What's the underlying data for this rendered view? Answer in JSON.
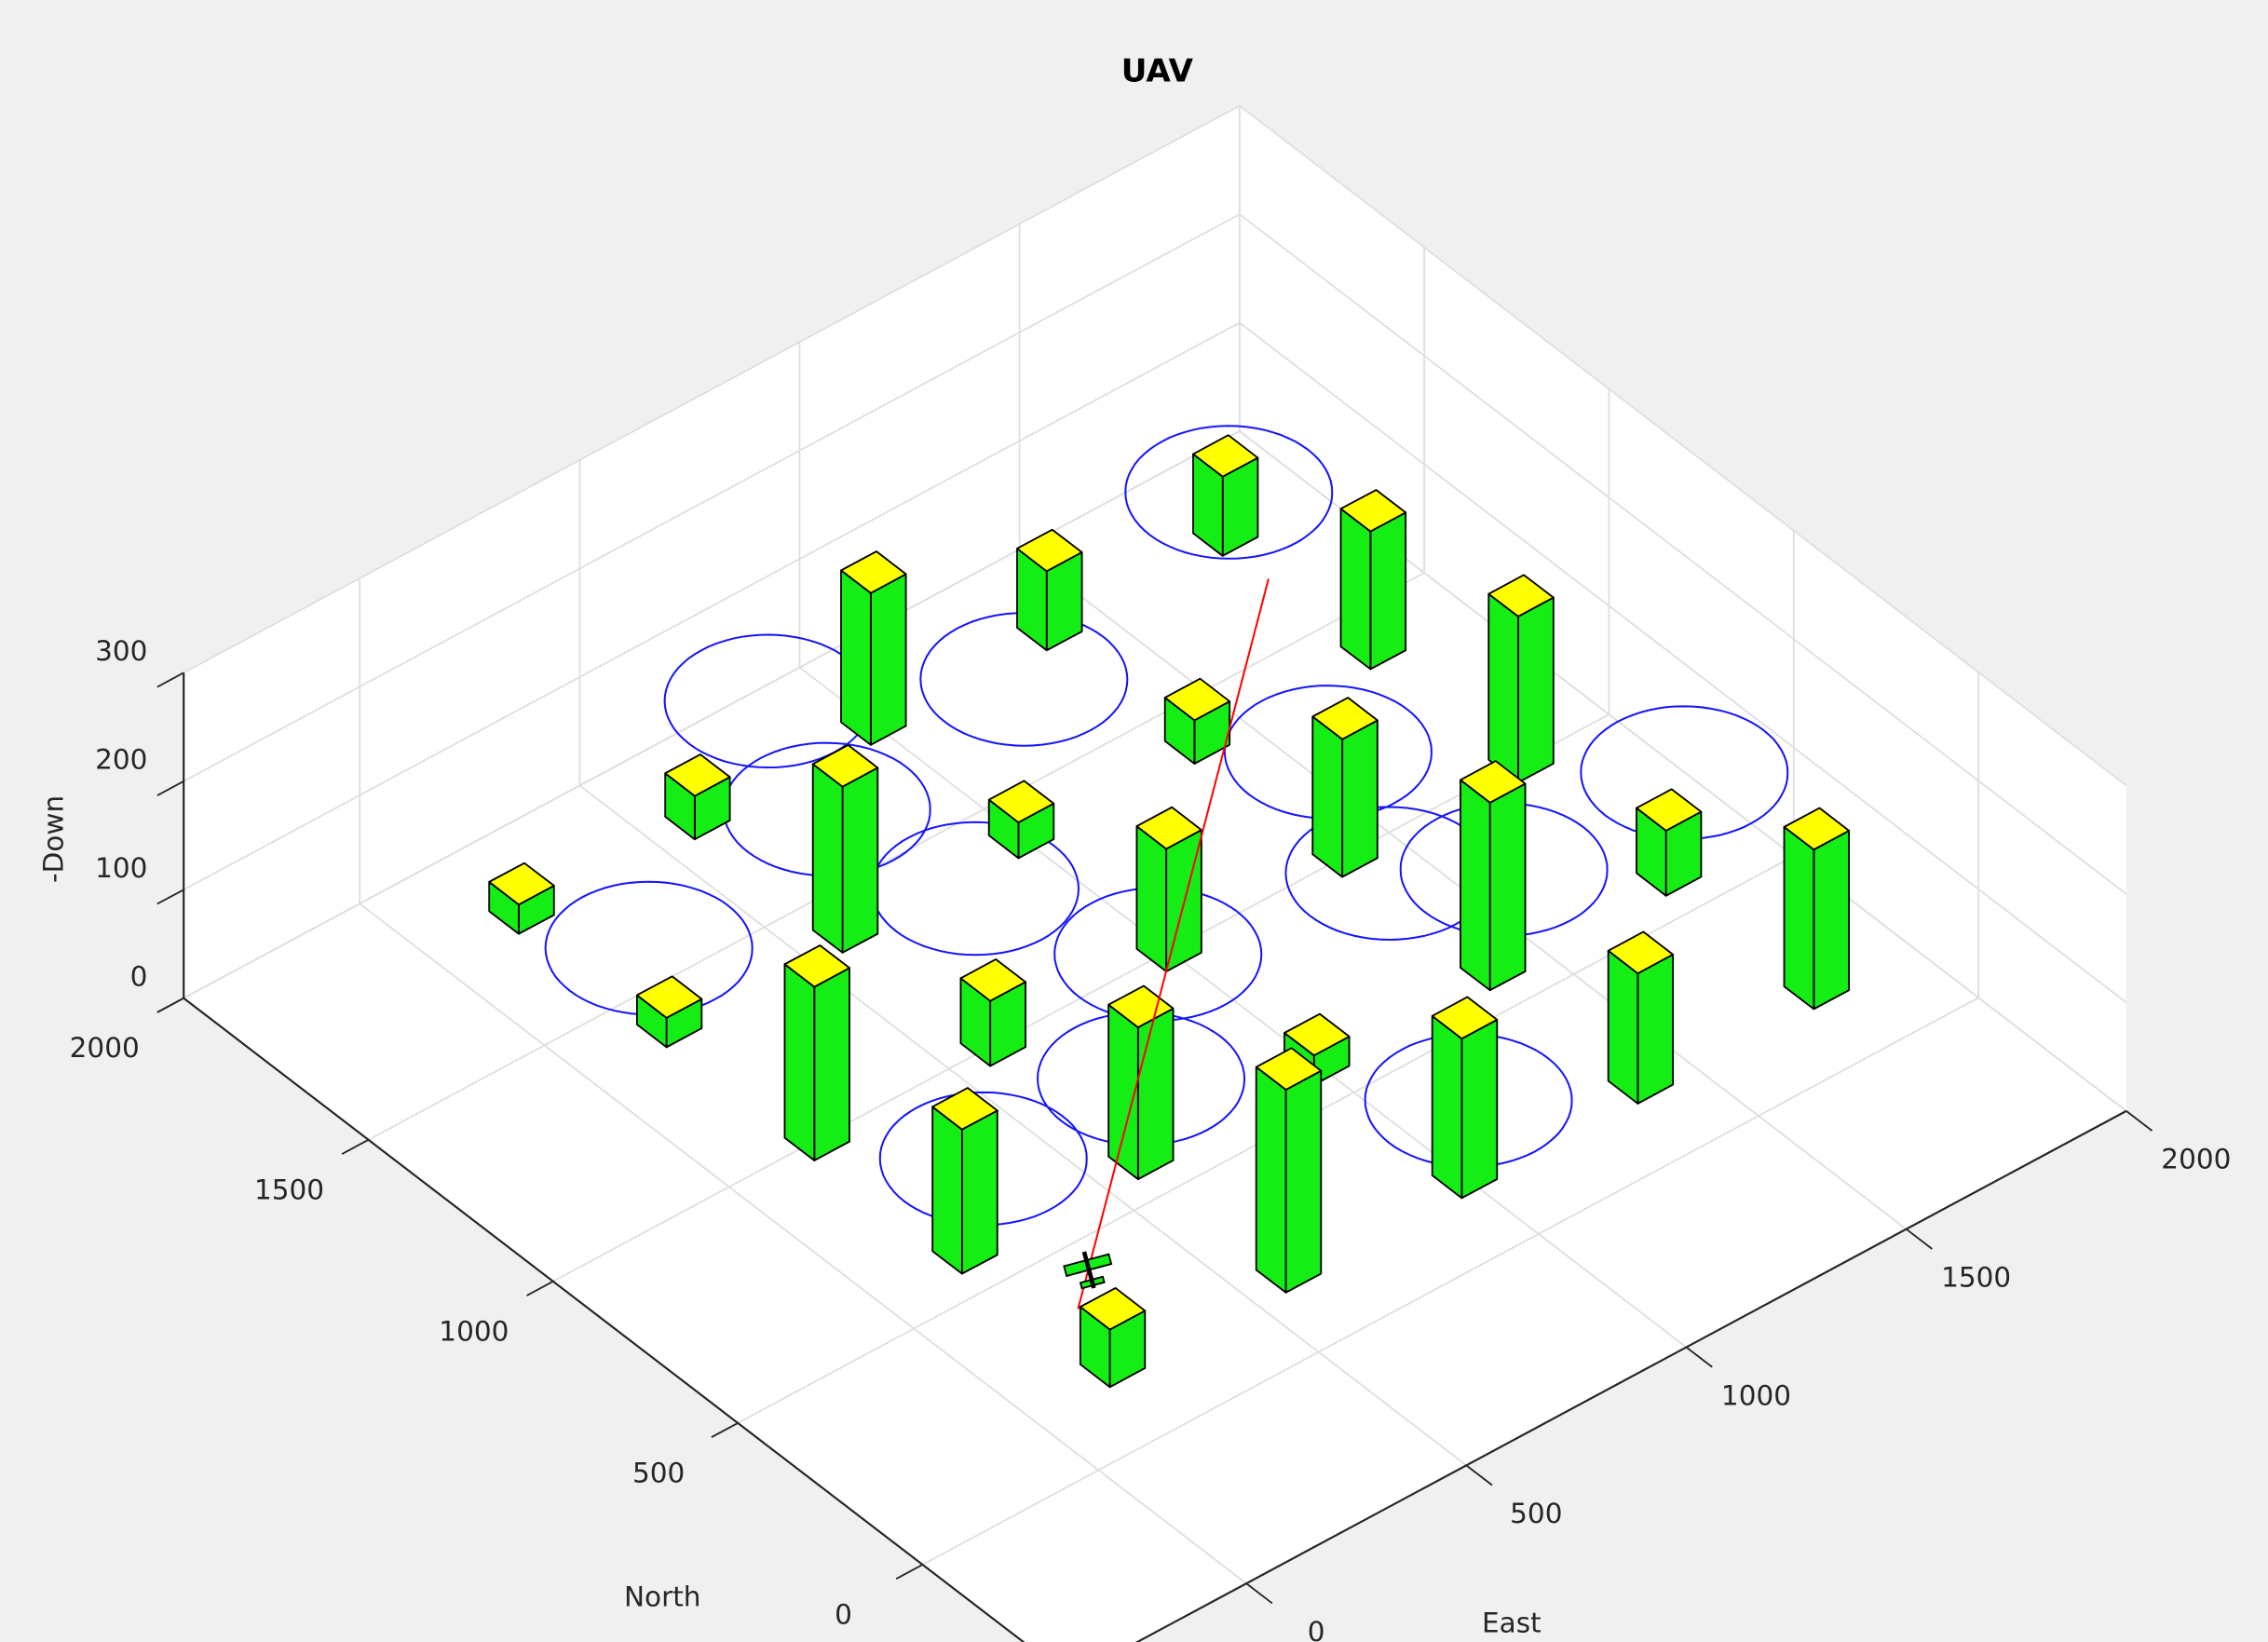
{
  "chart_data": {
    "type": "bar3d",
    "title": "UAV",
    "xlabel": "East",
    "ylabel": "North",
    "zlabel": "-Down",
    "xlim": [
      -400,
      2000
    ],
    "ylim": [
      -400,
      2000
    ],
    "zlim": [
      0,
      300
    ],
    "xticks": [
      0,
      500,
      1000,
      1500,
      2000
    ],
    "yticks": [
      0,
      500,
      1000,
      1500,
      2000
    ],
    "zticks": [
      0,
      100,
      200,
      300
    ],
    "grid": true,
    "buildings": {
      "east": [
        1800,
        1800,
        1800,
        1400,
        1000,
        1400,
        1400,
        1400,
        1800,
        1800,
        600,
        600,
        1000,
        1000,
        200,
        200,
        200,
        600,
        600,
        1000,
        600,
        1000,
        1400,
        200,
        200
      ],
      "north": [
        1800,
        1400,
        1000,
        1800,
        1800,
        1400,
        1000,
        600,
        600,
        200,
        1800,
        1400,
        1400,
        1000,
        1800,
        1400,
        1000,
        1000,
        600,
        600,
        200,
        200,
        200,
        600,
        200
      ],
      "height": [
        73,
        127,
        153,
        73,
        140,
        40,
        127,
        173,
        60,
        147,
        40,
        153,
        33,
        113,
        27,
        27,
        160,
        60,
        140,
        27,
        187,
        147,
        120,
        133,
        53
      ],
      "width": 80,
      "color": "#14ee14",
      "top_color": "#ffff00"
    },
    "loops": {
      "east": [
        1690,
        1090,
        710,
        1370,
        600,
        660,
        790,
        120,
        1240,
        1400,
        1810,
        950,
        550,
        200
      ],
      "north": [
        1660,
        1500,
        1740,
        1010,
        1450,
        1120,
        780,
        1360,
        690,
        570,
        570,
        130,
        540,
        550
      ],
      "radius": 180,
      "altitude": 100,
      "color": "#1414ff"
    },
    "path": {
      "east": [
        64,
        1592
      ],
      "north": [
        132,
        1436
      ],
      "altitude": [
        100,
        100
      ],
      "color": "#ff0000"
    },
    "uav": {
      "east": 153,
      "north": 211,
      "altitude": 100
    }
  }
}
